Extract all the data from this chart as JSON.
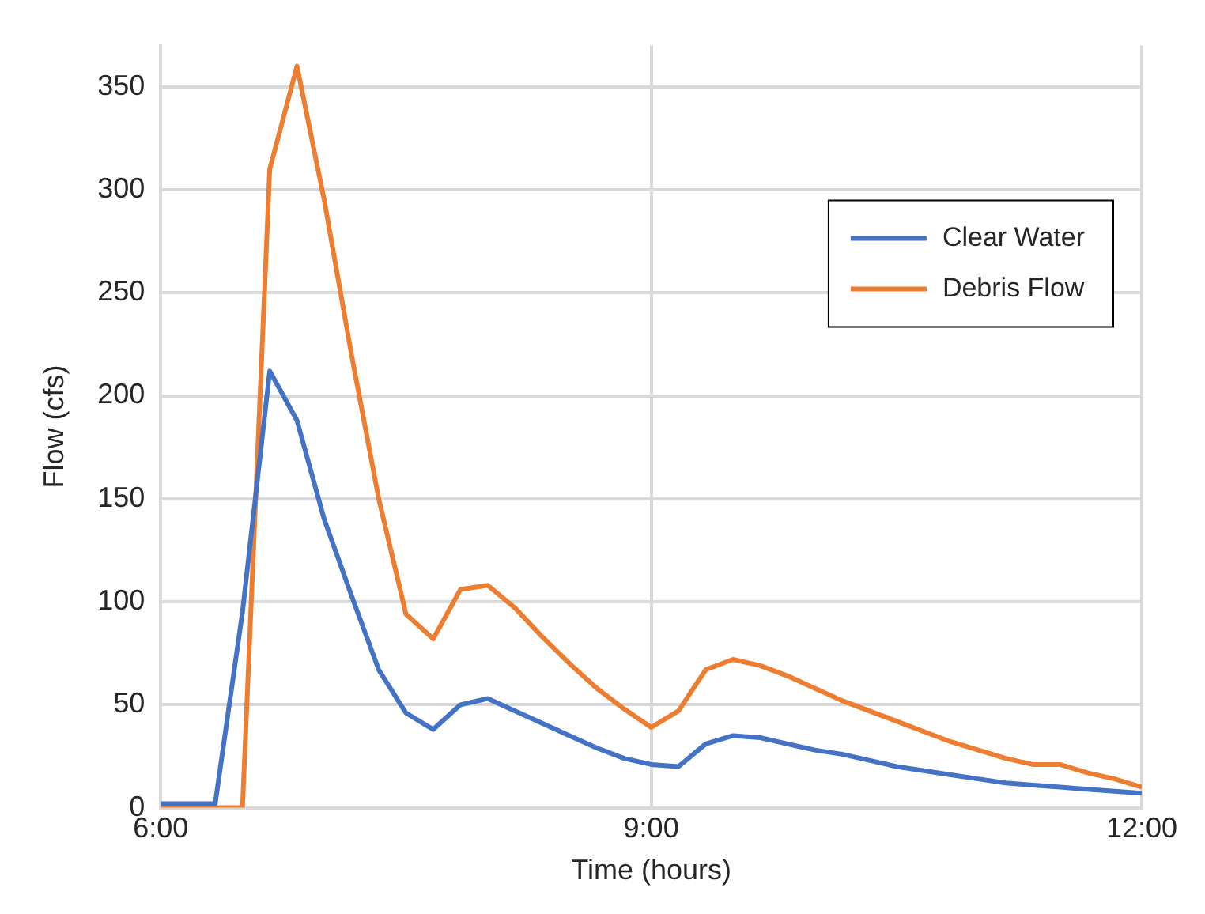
{
  "chart_data": {
    "type": "line",
    "xlabel": "Time (hours)",
    "ylabel": "Flow (cfs)",
    "x": [
      6,
      6.1667,
      6.3333,
      6.5,
      6.6667,
      6.8333,
      7,
      7.1667,
      7.3333,
      7.5,
      7.6667,
      7.8333,
      8,
      8.1667,
      8.3333,
      8.5,
      8.6667,
      8.8333,
      9,
      9.1667,
      9.3333,
      9.5,
      9.6667,
      9.8333,
      10,
      10.1667,
      10.3333,
      10.5,
      10.6667,
      10.8333,
      11,
      11.1667,
      11.3333,
      11.5,
      11.6667,
      11.8333,
      12
    ],
    "series": [
      {
        "name": "Clear Water",
        "color": "#4472c4",
        "values": [
          2,
          2,
          2,
          95,
          212,
          188,
          140,
          103,
          67,
          46,
          38,
          50,
          53,
          47,
          41,
          35,
          29,
          24,
          21,
          20,
          31,
          35,
          34,
          31,
          28,
          26,
          23,
          20,
          18,
          16,
          14,
          12,
          11,
          10,
          9,
          8,
          7
        ]
      },
      {
        "name": "Debris Flow",
        "color": "#ed7d31",
        "values": [
          0,
          0,
          0,
          0,
          310,
          360,
          295,
          220,
          150,
          94,
          82,
          106,
          108,
          97,
          83,
          70,
          58,
          48,
          39,
          47,
          67,
          72,
          69,
          64,
          58,
          52,
          47,
          42,
          37,
          32,
          28,
          24,
          21,
          21,
          17,
          14,
          10
        ]
      }
    ],
    "xlim": [
      6,
      12
    ],
    "xticks": [
      {
        "value": 6,
        "label": "6:00"
      },
      {
        "value": 9,
        "label": "9:00"
      },
      {
        "value": 12,
        "label": "12:00"
      }
    ],
    "ylim": [
      0,
      370
    ],
    "yticks": [
      0,
      50,
      100,
      150,
      200,
      250,
      300,
      350
    ],
    "grid": true,
    "legend": "top right",
    "marker": "none",
    "line_style": "solid"
  }
}
